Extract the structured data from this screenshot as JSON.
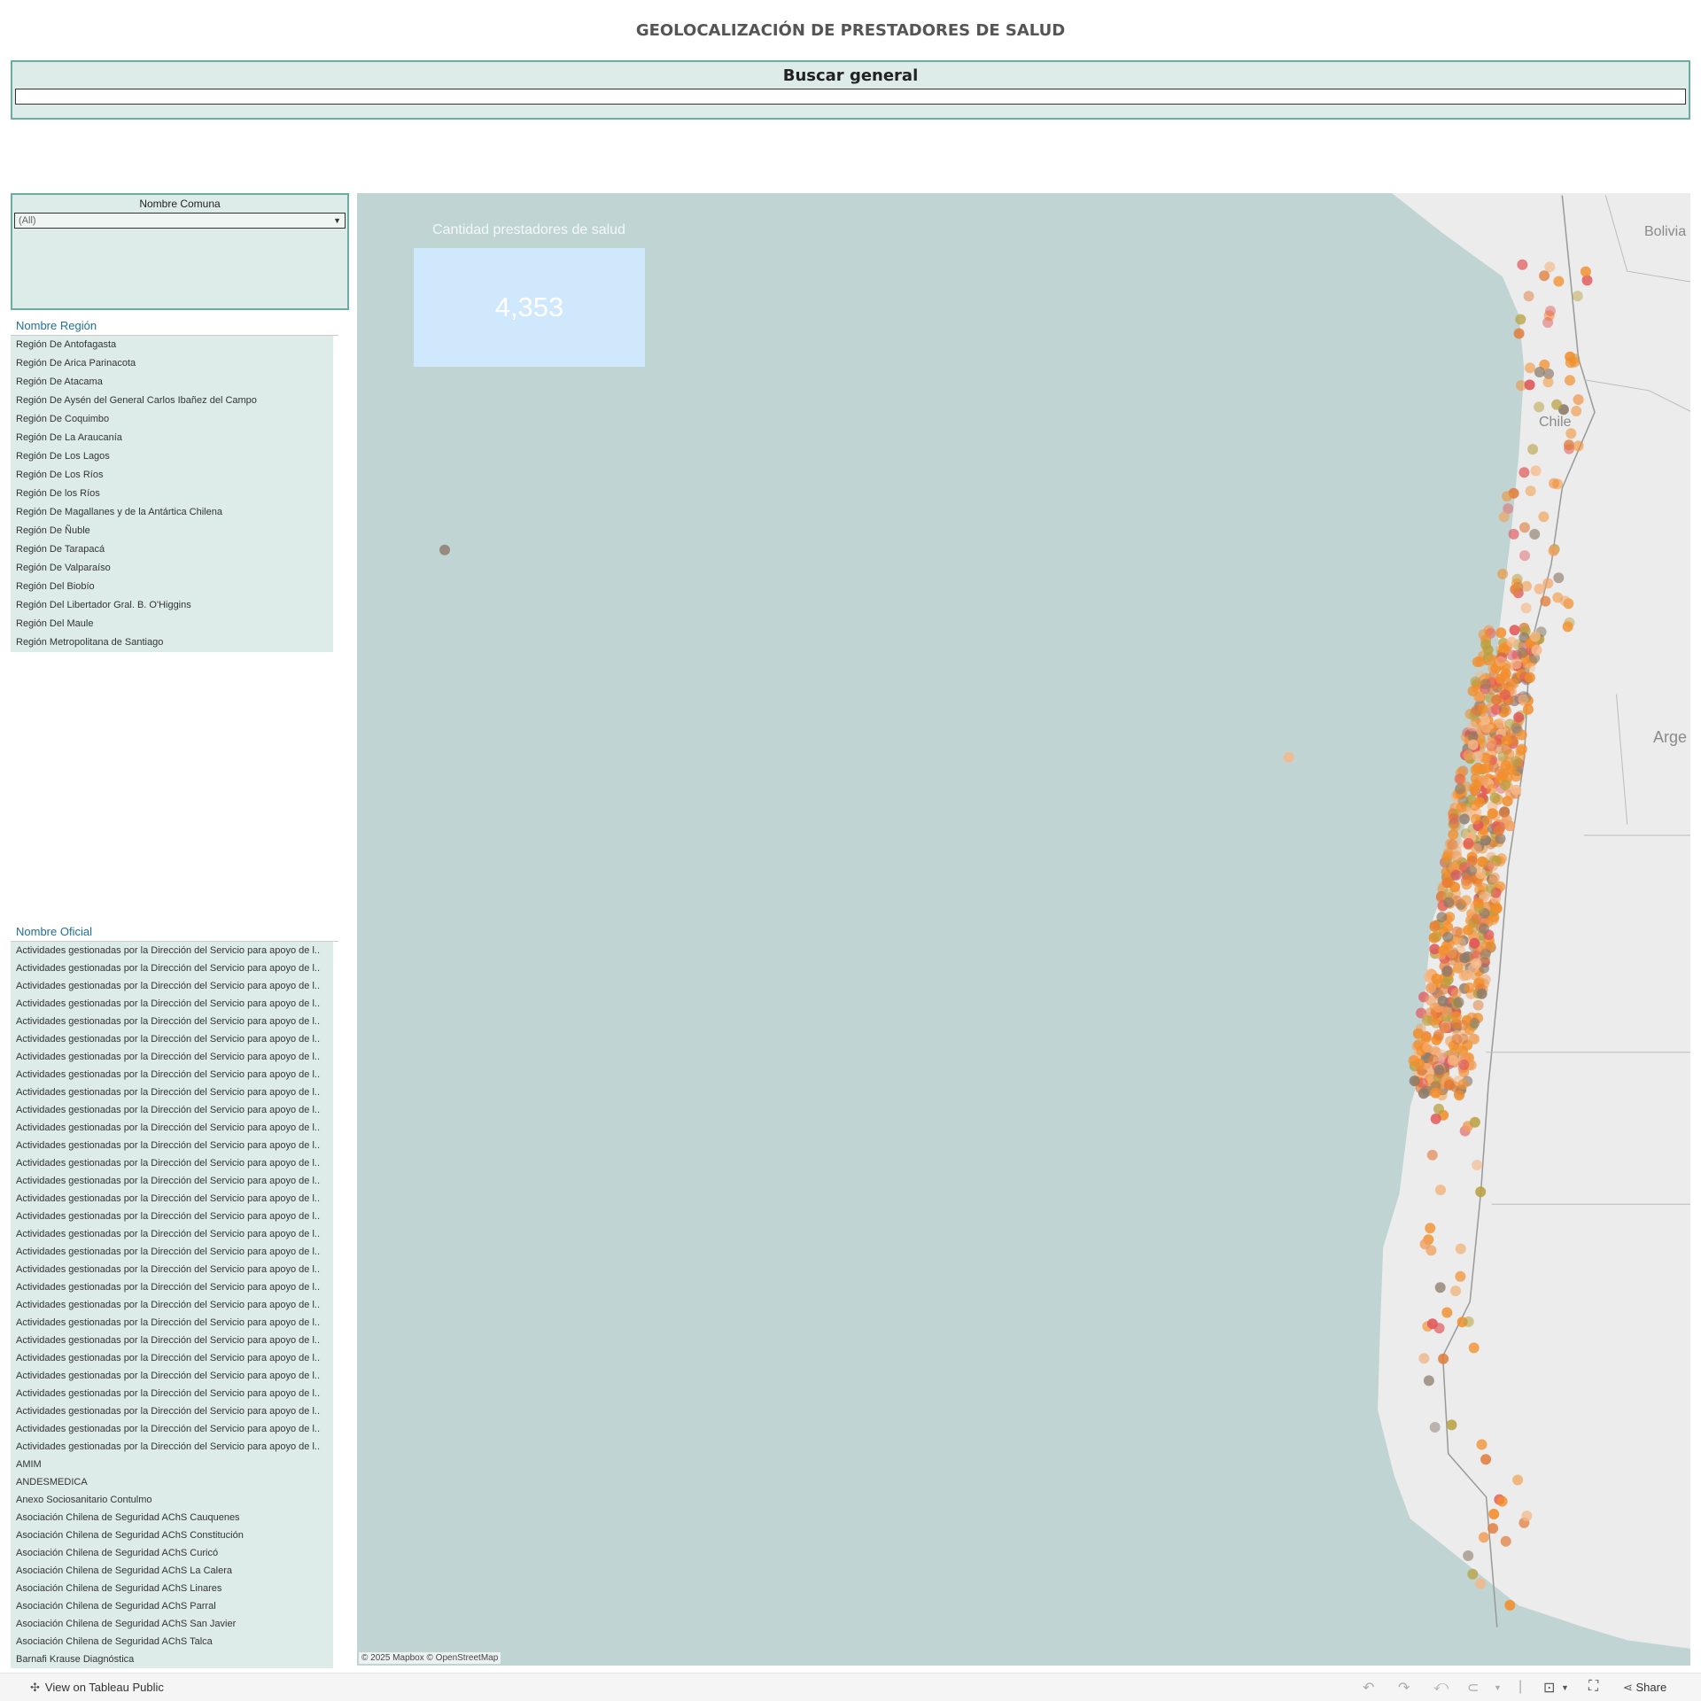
{
  "title": "GEOLOCALIZACIÓN DE PRESTADORES DE SALUD",
  "search": {
    "label": "Buscar general",
    "value": ""
  },
  "comuna_filter": {
    "label": "Nombre Comuna",
    "selected": "(All)"
  },
  "region_list": {
    "header": "Nombre Región",
    "items": [
      "Región De Antofagasta",
      "Región De Arica Parinacota",
      "Región De Atacama",
      "Región De Aysén del General Carlos Ibañez del Campo",
      "Región De Coquimbo",
      "Región De La Araucanía",
      "Región De Los Lagos",
      "Región De Los Ríos",
      "Región De los Ríos",
      "Región De Magallanes y de la Antártica Chilena",
      "Región De Ñuble",
      "Región De Tarapacá",
      "Región De Valparaíso",
      "Región Del Biobío",
      "Región Del Libertador Gral. B. O'Higgins",
      "Región Del Maule",
      "Región Metropolitana de Santiago"
    ]
  },
  "oficial_list": {
    "header": "Nombre Oficial",
    "items": [
      "Actividades gestionadas por la Dirección del Servicio para apoyo de l..",
      "Actividades gestionadas por la Dirección del Servicio para apoyo de l..",
      "Actividades gestionadas por la Dirección del Servicio para apoyo de l..",
      "Actividades gestionadas por la Dirección del Servicio para apoyo de l..",
      "Actividades gestionadas por la Dirección del Servicio para apoyo de l..",
      "Actividades gestionadas por la Dirección del Servicio para apoyo de l..",
      "Actividades gestionadas por la Dirección del Servicio para apoyo de l..",
      "Actividades gestionadas por la Dirección del Servicio para apoyo de l..",
      "Actividades gestionadas por la Dirección del Servicio para apoyo de l..",
      "Actividades gestionadas por la Dirección del Servicio para apoyo de l..",
      "Actividades gestionadas por la Dirección del Servicio para apoyo de l..",
      "Actividades gestionadas por la Dirección del Servicio para apoyo de l..",
      "Actividades gestionadas por la Dirección del Servicio para apoyo de l..",
      "Actividades gestionadas por la Dirección del Servicio para apoyo de l..",
      "Actividades gestionadas por la Dirección del Servicio para apoyo de l..",
      "Actividades gestionadas por la Dirección del Servicio para apoyo de l..",
      "Actividades gestionadas por la Dirección del Servicio para apoyo de l..",
      "Actividades gestionadas por la Dirección del Servicio para apoyo de l..",
      "Actividades gestionadas por la Dirección del Servicio para apoyo de l..",
      "Actividades gestionadas por la Dirección del Servicio para apoyo de l..",
      "Actividades gestionadas por la Dirección del Servicio para apoyo de l..",
      "Actividades gestionadas por la Dirección del Servicio para apoyo de l..",
      "Actividades gestionadas por la Dirección del Servicio para apoyo de l..",
      "Actividades gestionadas por la Dirección del Servicio para apoyo de l..",
      "Actividades gestionadas por la Dirección del Servicio para apoyo de l..",
      "Actividades gestionadas por la Dirección del Servicio para apoyo de l..",
      "Actividades gestionadas por la Dirección del Servicio para apoyo de l..",
      "Actividades gestionadas por la Dirección del Servicio para apoyo de l..",
      "Actividades gestionadas por la Dirección del Servicio para apoyo de l..",
      "AMIM",
      "ANDESMEDICA",
      "Anexo Sociosanitario Contulmo",
      "Asociación Chilena de Seguridad AChS Cauquenes",
      "Asociación Chilena de Seguridad AChS Constitución",
      "Asociación Chilena de Seguridad AChS Curicó",
      "Asociación Chilena de Seguridad AChS La Calera",
      "Asociación Chilena de Seguridad AChS Linares",
      "Asociación Chilena de Seguridad AChS Parral",
      "Asociación Chilena de Seguridad AChS San Javier",
      "Asociación Chilena de Seguridad AChS Talca",
      "Barnafi Krause Diagnóstica"
    ]
  },
  "map": {
    "kpi_title": "Cantidad prestadores de salud",
    "kpi_value": "4,353",
    "labels": {
      "bolivia": "Bolivia",
      "chile": "Chile",
      "argentina": "Arge"
    },
    "attribution": "© 2025 Mapbox © OpenStreetMap",
    "colors": {
      "ocean": "#c0d4d4",
      "land": "#ececec",
      "point": "#f28e2b",
      "kpi_box": "#d0e8fb",
      "accent": "#6aaea3"
    }
  },
  "footer": {
    "view_label": "View on Tableau Public",
    "share_label": "Share"
  }
}
